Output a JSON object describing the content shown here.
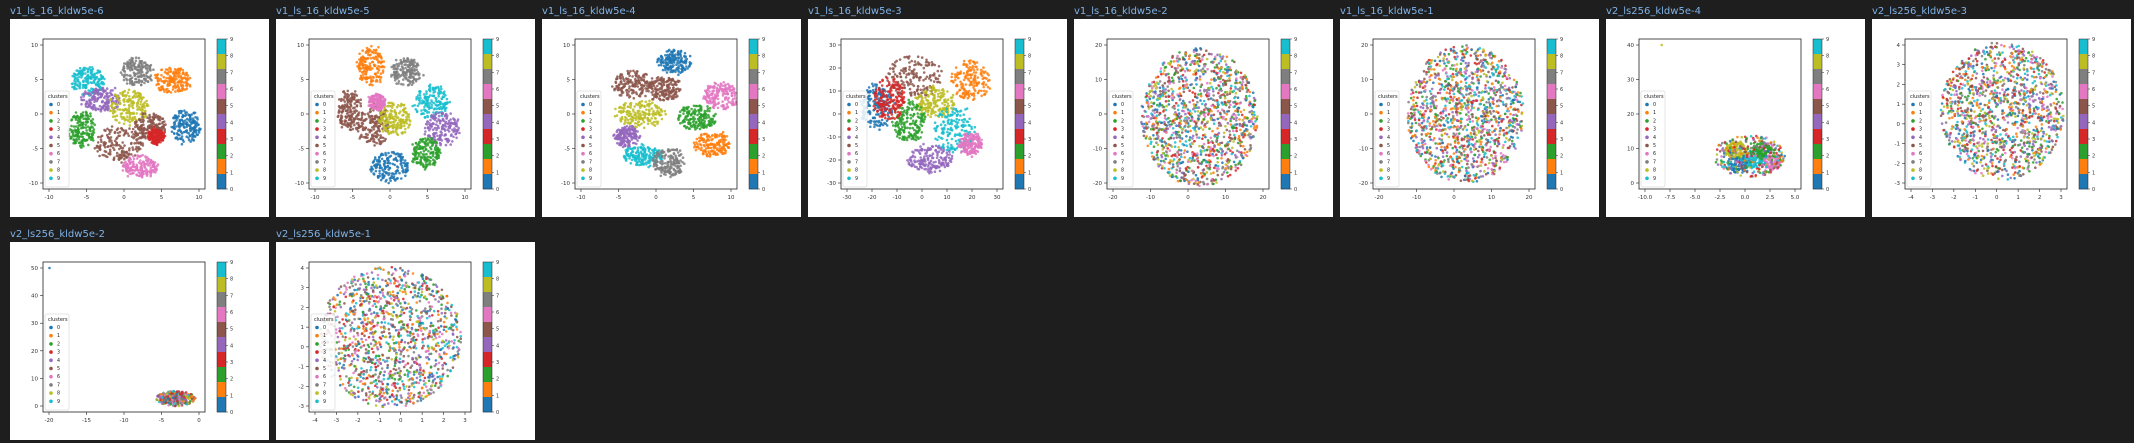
{
  "page": {
    "background": "#1e1e1e",
    "title_color": "#7fb2e6"
  },
  "palette": [
    "#1f77b4",
    "#ff7f0e",
    "#2ca02c",
    "#d62728",
    "#9467bd",
    "#8c564b",
    "#e377c2",
    "#7f7f7f",
    "#bcbd22",
    "#17becf"
  ],
  "legend_title": "clusters",
  "legend_labels": [
    "0",
    "1",
    "2",
    "3",
    "4",
    "5",
    "6",
    "7",
    "8",
    "9"
  ],
  "colorbar_ticks": [
    "9",
    "8",
    "7",
    "6",
    "5",
    "4",
    "3",
    "2",
    "1",
    "0"
  ],
  "panels": [
    {
      "title": "v1_ls_16_kldw5e-6",
      "xticks": [
        "-10",
        "-5",
        "0",
        "5",
        "10"
      ],
      "yticks": [
        "10",
        "5",
        "0",
        "-5",
        "-10"
      ],
      "layout": "blobs",
      "blobs": [
        [
          7,
          0.58,
          0.22,
          0.1,
          0.09
        ],
        [
          1,
          0.8,
          0.28,
          0.11,
          0.09
        ],
        [
          9,
          0.28,
          0.28,
          0.1,
          0.09
        ],
        [
          4,
          0.36,
          0.4,
          0.13,
          0.08
        ],
        [
          8,
          0.53,
          0.45,
          0.12,
          0.12
        ],
        [
          0,
          0.88,
          0.58,
          0.09,
          0.11
        ],
        [
          2,
          0.24,
          0.6,
          0.08,
          0.12
        ],
        [
          5,
          0.47,
          0.7,
          0.15,
          0.11
        ],
        [
          5,
          0.66,
          0.58,
          0.1,
          0.09
        ],
        [
          6,
          0.6,
          0.85,
          0.11,
          0.07
        ],
        [
          3,
          0.7,
          0.65,
          0.05,
          0.05
        ]
      ]
    },
    {
      "title": "v1_ls_16_kldw5e-5",
      "xticks": [
        "-10",
        "-5",
        "0",
        "5",
        "10"
      ],
      "yticks": [
        "10",
        "5",
        "0",
        "-5",
        "-10"
      ],
      "layout": "blobs",
      "blobs": [
        [
          1,
          0.38,
          0.18,
          0.08,
          0.13
        ],
        [
          7,
          0.6,
          0.22,
          0.09,
          0.09
        ],
        [
          9,
          0.75,
          0.42,
          0.11,
          0.11
        ],
        [
          5,
          0.25,
          0.47,
          0.07,
          0.14
        ],
        [
          5,
          0.4,
          0.58,
          0.1,
          0.14
        ],
        [
          8,
          0.53,
          0.53,
          0.1,
          0.11
        ],
        [
          4,
          0.82,
          0.6,
          0.11,
          0.11
        ],
        [
          2,
          0.72,
          0.76,
          0.09,
          0.1
        ],
        [
          0,
          0.5,
          0.85,
          0.12,
          0.1
        ],
        [
          6,
          0.42,
          0.42,
          0.05,
          0.05
        ]
      ]
    },
    {
      "title": "v1_ls_16_kldw5e-4",
      "xticks": [
        "-10",
        "-5",
        "0",
        "5",
        "10"
      ],
      "yticks": [
        "10",
        "5",
        "0",
        "-5",
        "-10"
      ],
      "layout": "blobs",
      "blobs": [
        [
          0,
          0.62,
          0.15,
          0.11,
          0.08
        ],
        [
          5,
          0.35,
          0.3,
          0.12,
          0.09
        ],
        [
          5,
          0.55,
          0.33,
          0.1,
          0.08
        ],
        [
          6,
          0.9,
          0.38,
          0.11,
          0.09
        ],
        [
          8,
          0.4,
          0.5,
          0.15,
          0.09
        ],
        [
          2,
          0.75,
          0.52,
          0.12,
          0.08
        ],
        [
          4,
          0.32,
          0.65,
          0.08,
          0.07
        ],
        [
          1,
          0.85,
          0.7,
          0.11,
          0.08
        ],
        [
          9,
          0.42,
          0.78,
          0.12,
          0.07
        ],
        [
          7,
          0.58,
          0.82,
          0.1,
          0.1
        ]
      ]
    },
    {
      "title": "v1_ls_16_kldw5e-3",
      "xticks": [
        "-30",
        "-20",
        "-10",
        "0",
        "10",
        "20",
        "30"
      ],
      "yticks": [
        "30",
        "20",
        "10",
        "0",
        "-10",
        "-20",
        "-30"
      ],
      "layout": "blobs",
      "blobs": [
        [
          5,
          0.45,
          0.25,
          0.18,
          0.14
        ],
        [
          1,
          0.8,
          0.28,
          0.12,
          0.13
        ],
        [
          0,
          0.22,
          0.45,
          0.1,
          0.15
        ],
        [
          8,
          0.58,
          0.42,
          0.12,
          0.1
        ],
        [
          2,
          0.42,
          0.55,
          0.1,
          0.14
        ],
        [
          9,
          0.7,
          0.6,
          0.13,
          0.16
        ],
        [
          4,
          0.55,
          0.8,
          0.14,
          0.09
        ],
        [
          6,
          0.8,
          0.7,
          0.07,
          0.07
        ],
        [
          3,
          0.3,
          0.4,
          0.1,
          0.14
        ]
      ]
    },
    {
      "title": "v1_ls_16_kldw5e-2",
      "xticks": [
        "-20",
        "-10",
        "0",
        "10",
        "20"
      ],
      "yticks": [
        "20",
        "10",
        "0",
        "-10",
        "-20"
      ],
      "layout": "disk",
      "cx": 0.57,
      "cy": 0.52,
      "rx": 0.36,
      "ry": 0.46,
      "n": 1300
    },
    {
      "title": "v1_ls_16_kldw5e-1",
      "xticks": [
        "-20",
        "-10",
        "0",
        "10",
        "20"
      ],
      "yticks": [
        "20",
        "10",
        "0",
        "-10",
        "-20"
      ],
      "layout": "disk",
      "cx": 0.57,
      "cy": 0.5,
      "rx": 0.36,
      "ry": 0.46,
      "n": 1300
    },
    {
      "title": "v2_ls256_kldw5e-4",
      "xticks": [
        "-10.0",
        "-7.5",
        "-5.0",
        "-2.5",
        "0.0",
        "2.5",
        "5.0"
      ],
      "yticks": [
        "40",
        "30",
        "20",
        "10",
        "0"
      ],
      "layout": "squash",
      "cx": 0.68,
      "cy": 0.78,
      "rx": 0.22,
      "ry": 0.14,
      "outlier": [
        0.14,
        0.04,
        8
      ],
      "blobs": [
        [
          0,
          0.62,
          0.84,
          0.08,
          0.05
        ],
        [
          9,
          0.7,
          0.8,
          0.07,
          0.06
        ],
        [
          6,
          0.82,
          0.82,
          0.06,
          0.05
        ],
        [
          8,
          0.6,
          0.74,
          0.07,
          0.05
        ],
        [
          2,
          0.76,
          0.74,
          0.06,
          0.05
        ]
      ]
    },
    {
      "title": "v2_ls256_kldw5e-3",
      "xticks": [
        "-4",
        "-3",
        "-2",
        "-1",
        "0",
        "1",
        "2",
        "3"
      ],
      "yticks": [
        "4",
        "3",
        "2",
        "1",
        "0",
        "-1",
        "-2",
        "-3"
      ],
      "layout": "disk",
      "cx": 0.6,
      "cy": 0.48,
      "rx": 0.38,
      "ry": 0.46,
      "n": 1300
    },
    {
      "title": "v2_ls256_kldw5e-2",
      "xticks": [
        "-20",
        "-15",
        "-10",
        "-5",
        "0"
      ],
      "yticks": [
        "50",
        "40",
        "30",
        "20",
        "10",
        "0"
      ],
      "layout": "squash",
      "cx": 0.82,
      "cy": 0.91,
      "rx": 0.12,
      "ry": 0.05,
      "outlier": [
        0.04,
        0.04,
        0
      ],
      "blobs": []
    },
    {
      "title": "v2_ls256_kldw5e-1",
      "xticks": [
        "-4",
        "-3",
        "-2",
        "-1",
        "0",
        "1",
        "2",
        "3"
      ],
      "yticks": [
        "4",
        "3",
        "2",
        "1",
        "0",
        "-1",
        "-2",
        "-3"
      ],
      "layout": "disk",
      "cx": 0.5,
      "cy": 0.5,
      "rx": 0.44,
      "ry": 0.47,
      "n": 1300
    }
  ]
}
